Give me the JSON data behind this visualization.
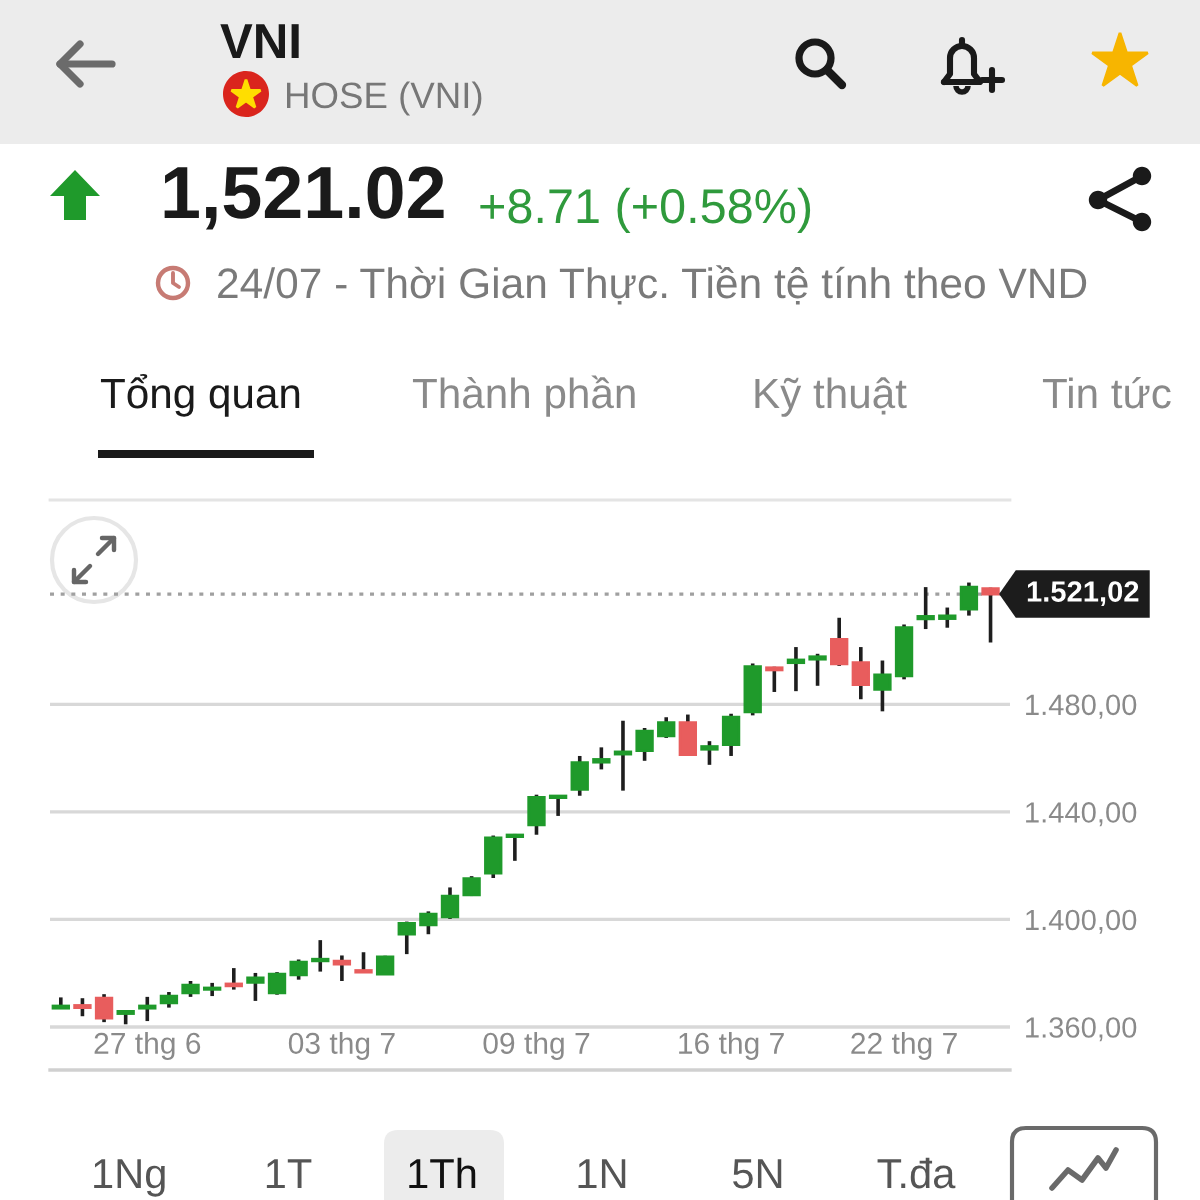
{
  "chart_data": {
    "type": "candlestick",
    "title": "VNI",
    "subtitle": "HOSE (VNI)",
    "annotations": [
      "1,521.02",
      "+8.71 (+0.58%)",
      "24/07 - Thời Gian Thực. Tiền tệ tính theo VND",
      "Tổng quan",
      "Thành phần",
      "Kỹ thuật",
      "Tin tức",
      "1Ng",
      "1T",
      "1Th",
      "1N",
      "5N",
      "T.đa"
    ],
    "categories": [
      null,
      null,
      null,
      null,
      "27 thg 6",
      null,
      null,
      null,
      null,
      null,
      null,
      null,
      null,
      "03 thg 7",
      null,
      null,
      null,
      null,
      null,
      null,
      null,
      null,
      "09 thg 7",
      null,
      null,
      null,
      null,
      null,
      null,
      null,
      null,
      "16 thg 7",
      null,
      null,
      null,
      null,
      null,
      null,
      null,
      "22 thg 7",
      null,
      null,
      null,
      null
    ],
    "ohlc": [
      [
        1367.0,
        1371.0,
        1366.8,
        1367.8
      ],
      [
        1368.0,
        1370.7,
        1364.0,
        1367.2
      ],
      [
        1370.7,
        1372.2,
        1361.8,
        1363.3
      ],
      [
        1365.0,
        1365.8,
        1361.0,
        1365.8
      ],
      [
        1367.0,
        1371.2,
        1362.2,
        1367.8
      ],
      [
        1369.0,
        1373.0,
        1367.2,
        1371.5
      ],
      [
        1372.7,
        1377.1,
        1371.2,
        1375.6
      ],
      [
        1374.0,
        1376.4,
        1371.5,
        1374.5
      ],
      [
        1376.0,
        1381.9,
        1373.9,
        1375.3
      ],
      [
        1376.6,
        1380.1,
        1369.7,
        1378.3
      ],
      [
        1372.7,
        1380.4,
        1372.0,
        1379.7
      ],
      [
        1379.4,
        1385.1,
        1377.6,
        1384.1
      ],
      [
        1384.6,
        1392.3,
        1380.6,
        1385.2
      ],
      [
        1384.5,
        1386.6,
        1377.1,
        1383.4
      ],
      [
        1381.0,
        1387.8,
        1380.2,
        1380.4
      ],
      [
        1379.7,
        1386.5,
        1379.5,
        1386.1
      ],
      [
        1394.5,
        1399.2,
        1387.1,
        1398.5
      ],
      [
        1398.0,
        1403.0,
        1394.5,
        1402.0
      ],
      [
        1401.0,
        1411.9,
        1400.2,
        1408.7
      ],
      [
        1409.1,
        1416.1,
        1408.7,
        1415.2
      ],
      [
        1417.2,
        1431.2,
        1415.4,
        1430.3
      ],
      [
        1430.8,
        1431.8,
        1421.8,
        1431.4
      ],
      [
        1435.2,
        1446.4,
        1431.5,
        1445.4
      ],
      [
        1445.3,
        1446.0,
        1438.5,
        1445.9
      ],
      [
        1448.4,
        1460.8,
        1446.0,
        1458.3
      ],
      [
        1458.5,
        1464.0,
        1455.8,
        1459.5
      ],
      [
        1461.5,
        1473.9,
        1447.9,
        1462.3
      ],
      [
        1462.8,
        1471.2,
        1459.0,
        1470.0
      ],
      [
        1468.3,
        1475.2,
        1467.5,
        1473.2
      ],
      [
        1473.2,
        1476.2,
        1460.8,
        1461.3
      ],
      [
        1463.3,
        1466.3,
        1457.5,
        1464.3
      ],
      [
        1465.0,
        1476.5,
        1460.8,
        1475.2
      ],
      [
        1477.2,
        1495.2,
        1475.9,
        1494.0
      ],
      [
        1493.6,
        1494.0,
        1484.6,
        1492.8
      ],
      [
        1495.5,
        1501.3,
        1484.9,
        1496.5
      ],
      [
        1496.8,
        1498.8,
        1486.9,
        1497.7
      ],
      [
        1504.2,
        1512.2,
        1494.3,
        1495.1
      ],
      [
        1495.5,
        1501.3,
        1481.9,
        1487.3
      ],
      [
        1485.6,
        1496.3,
        1477.4,
        1491.0
      ],
      [
        1490.6,
        1509.7,
        1489.3,
        1508.5
      ],
      [
        1511.8,
        1523.6,
        1508.0,
        1512.7
      ],
      [
        1511.9,
        1516.0,
        1508.5,
        1512.9
      ],
      [
        1515.4,
        1525.3,
        1513.0,
        1523.6
      ],
      [
        1523.0,
        1523.4,
        1503.0,
        1521.02
      ]
    ],
    "colors": [
      "#1f9a2b",
      "#e85d5d",
      "#e85d5d",
      "#1f9a2b",
      "#1f9a2b",
      "#1f9a2b",
      "#1f9a2b",
      "#1f9a2b",
      "#e85d5d",
      "#1f9a2b",
      "#1f9a2b",
      "#1f9a2b",
      "#1f9a2b",
      "#e85d5d",
      "#e85d5d",
      "#1f9a2b",
      "#1f9a2b",
      "#1f9a2b",
      "#1f9a2b",
      "#1f9a2b",
      "#1f9a2b",
      "#1f9a2b",
      "#1f9a2b",
      "#1f9a2b",
      "#1f9a2b",
      "#1f9a2b",
      "#1f9a2b",
      "#1f9a2b",
      "#1f9a2b",
      "#e85d5d",
      "#1f9a2b",
      "#1f9a2b",
      "#1f9a2b",
      "#e85d5d",
      "#1f9a2b",
      "#1f9a2b",
      "#e85d5d",
      "#e85d5d",
      "#1f9a2b",
      "#1f9a2b",
      "#1f9a2b",
      "#1f9a2b",
      "#1f9a2b",
      "#e85d5d"
    ],
    "ylim": [
      1344,
      1556
    ],
    "yticks": [
      {
        "value": 1360,
        "label": "1.360,00"
      },
      {
        "value": 1400,
        "label": "1.400,00"
      },
      {
        "value": 1440,
        "label": "1.440,00"
      },
      {
        "value": 1480,
        "label": "1.480,00"
      }
    ],
    "grid": "y",
    "ref_lines": [
      {
        "axis": "y",
        "value": 1521.02,
        "label": "1.521,02",
        "color": "#a0a0a0",
        "line_style": "dotted"
      }
    ]
  }
}
